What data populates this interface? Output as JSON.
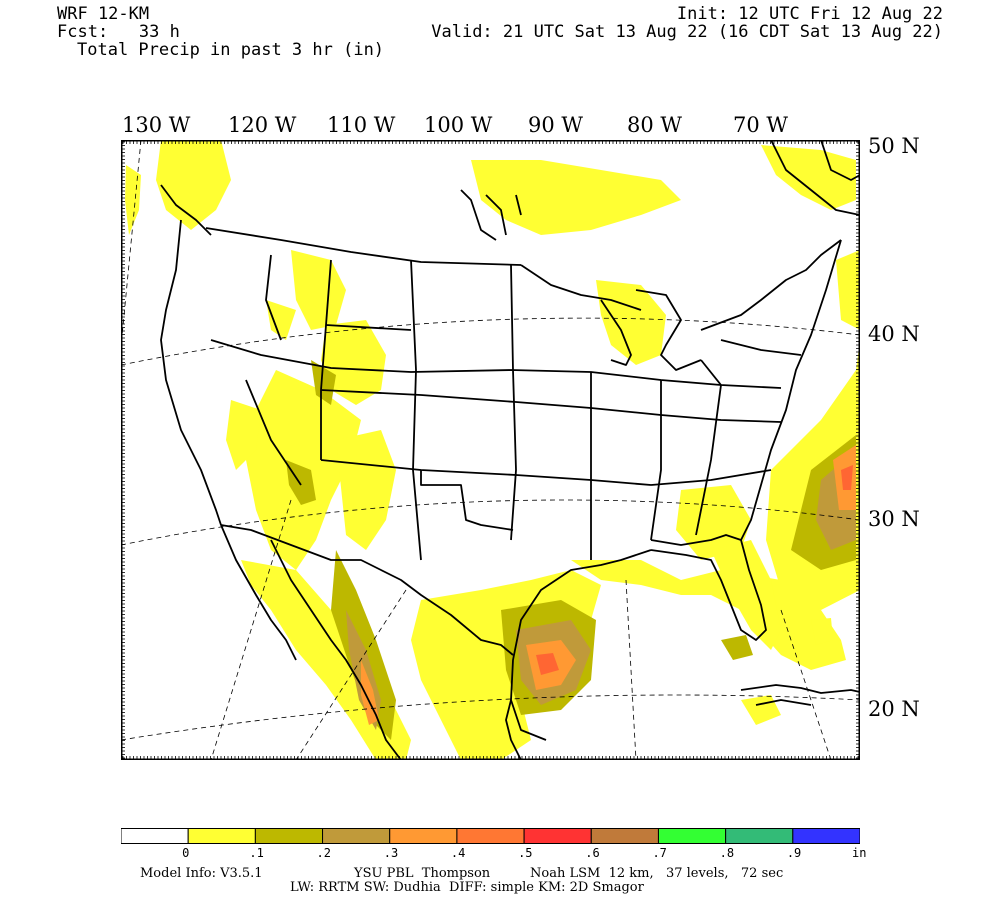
{
  "header": {
    "model": "WRF 12-KM",
    "fcst": "Fcst:   33 h",
    "field": "Total Precip in past 3 hr (in)",
    "init": "Init: 12 UTC Fri 12 Aug 22",
    "valid": "Valid: 21 UTC Sat 13 Aug 22 (16 CDT Sat 13 Aug 22)"
  },
  "map": {
    "lon_labels": [
      "130 W",
      "120 W",
      "110 W",
      "100 W",
      "90 W",
      "80 W",
      "70 W"
    ],
    "lat_labels": [
      "50 N",
      "40 N",
      "30 N",
      "20 N"
    ],
    "colors": {
      "border": "#000000",
      "lt_yellow": "#ffff33",
      "olive": "#bdb800",
      "tan": "#c09a3a",
      "orange": "#ff9933",
      "dk_orange": "#ff6633"
    }
  },
  "colorbar": {
    "colors": [
      "#ffffff",
      "#ffff33",
      "#bdb800",
      "#c09a3a",
      "#ff9933",
      "#ff7733",
      "#ff3333",
      "#c07a3a",
      "#33ff33",
      "#33bb77",
      "#3333ff"
    ],
    "labels": [
      "0",
      ".1",
      ".2",
      ".3",
      ".4",
      ".5",
      ".6",
      ".7",
      ".8",
      ".9"
    ],
    "unit": "in"
  },
  "footer": {
    "line1_a": "Model Info: V3.5.1",
    "line1_b": "YSU PBL  Thompson",
    "line1_c": "Noah LSM  12 km,   37 levels,   72 sec",
    "line2": "LW: RRTM SW: Dudhia  DIFF: simple KM: 2D Smagor"
  }
}
